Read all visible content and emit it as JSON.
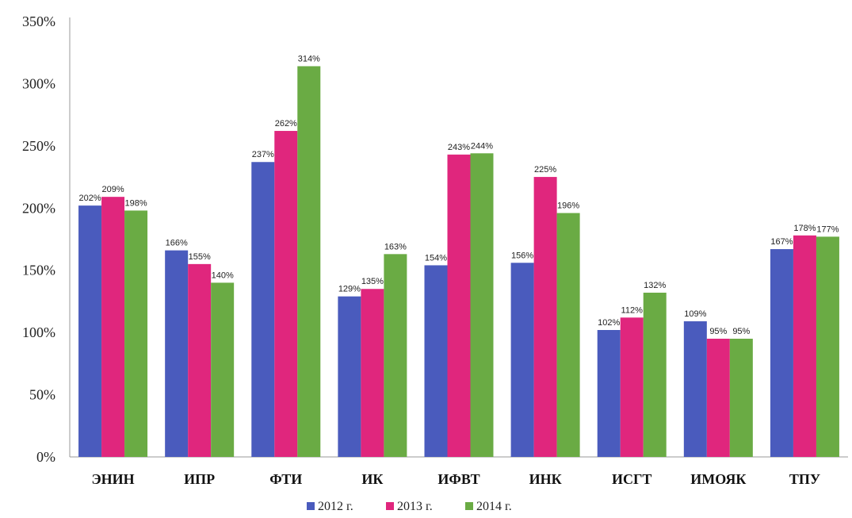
{
  "chart_data": {
    "type": "bar",
    "categories": [
      "ЭНИН",
      "ИПР",
      "ФТИ",
      "ИК",
      "ИФВТ",
      "ИНК",
      "ИСГТ",
      "ИМОЯК",
      "ТПУ"
    ],
    "series": [
      {
        "name": "2012 г.",
        "color": "#4a5bbd",
        "values": [
          202,
          166,
          237,
          129,
          154,
          156,
          102,
          109,
          167
        ],
        "labels": [
          "202%",
          "166%",
          "237%",
          "129%",
          "154%",
          "156%",
          "102%",
          "109%",
          "167%"
        ]
      },
      {
        "name": "2013 г.",
        "color": "#e0267d",
        "values": [
          209,
          155,
          262,
          135,
          243,
          225,
          112,
          95,
          178
        ],
        "labels": [
          "209%",
          "155%",
          "262%",
          "135%",
          "243%",
          "225%",
          "112%",
          "95%",
          "178%"
        ]
      },
      {
        "name": "2014 г.",
        "color": "#6aab44",
        "values": [
          198,
          140,
          314,
          163,
          244,
          196,
          132,
          95,
          177
        ],
        "labels": [
          "198%",
          "140%",
          "314%",
          "163%",
          "244%",
          "196%",
          "132%",
          "95%",
          "177%"
        ]
      }
    ],
    "yticks": [
      "0%",
      "50%",
      "100%",
      "150%",
      "200%",
      "250%",
      "300%",
      "350%"
    ],
    "ylim": [
      0,
      350
    ],
    "grid": false,
    "legend": "bottom"
  }
}
